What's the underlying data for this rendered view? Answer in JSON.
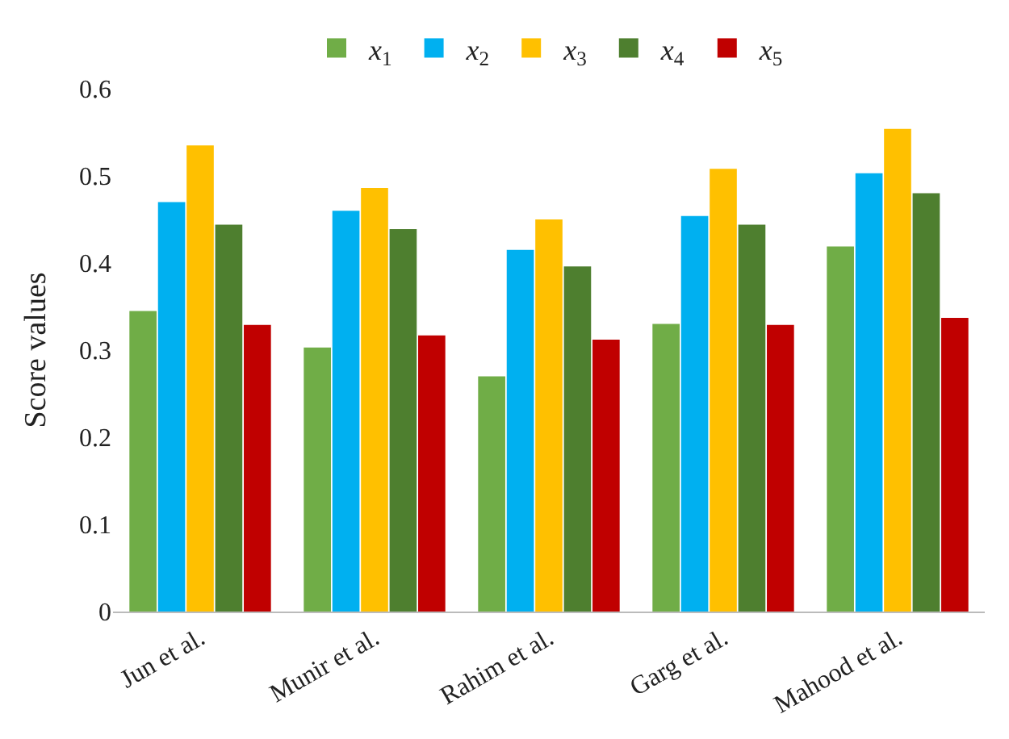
{
  "chart_data": {
    "type": "bar",
    "ylabel": "Score values",
    "categories": [
      "Jun et al.",
      "Munir et al.",
      "Rahim et al.",
      "Garg et al.",
      "Mahood et al."
    ],
    "series": [
      {
        "name": "x$_{1}$",
        "color": "#70ad47",
        "values": [
          0.345,
          0.303,
          0.27,
          0.33,
          0.419
        ]
      },
      {
        "name": "x$_{2}$",
        "color": "#00b0f0",
        "values": [
          0.47,
          0.46,
          0.415,
          0.454,
          0.503
        ]
      },
      {
        "name": "x$_{3}$",
        "color": "#ffc000",
        "values": [
          0.535,
          0.486,
          0.45,
          0.508,
          0.554
        ]
      },
      {
        "name": "x$_{4}$",
        "color": "#4e7f2f",
        "values": [
          0.444,
          0.439,
          0.396,
          0.444,
          0.48
        ]
      },
      {
        "name": "x$_{5}$",
        "color": "#c00000",
        "values": [
          0.329,
          0.317,
          0.312,
          0.329,
          0.337
        ]
      }
    ],
    "ylim": [
      0,
      0.6
    ],
    "yticks": [
      0,
      0.1,
      0.2,
      0.3,
      0.4,
      0.5,
      0.6
    ],
    "legend": "top"
  }
}
